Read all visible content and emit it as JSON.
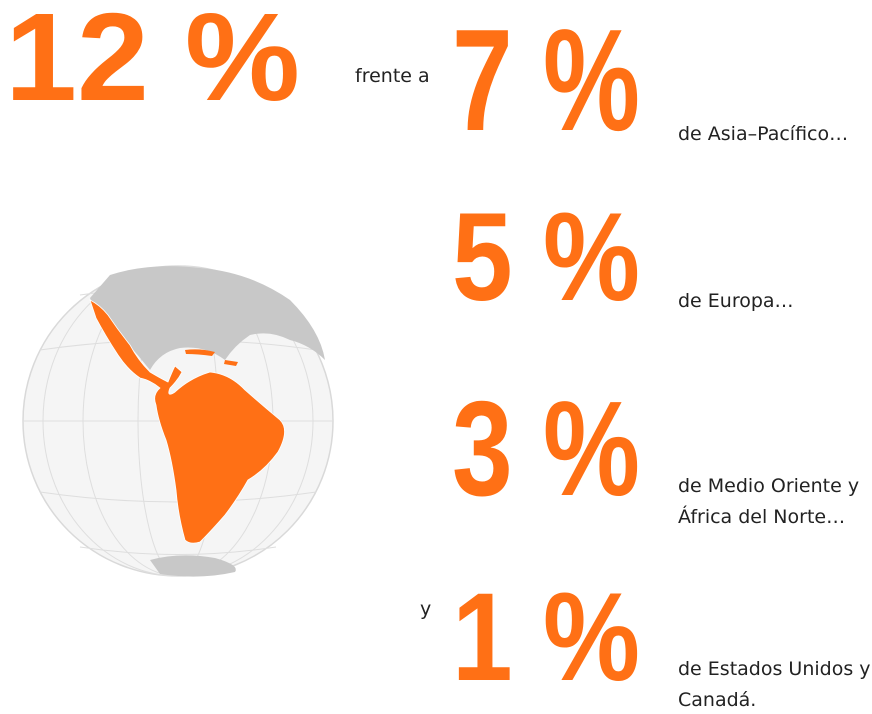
{
  "headline": {
    "value": "12 %",
    "connector": "frente a"
  },
  "stats": [
    {
      "prefix": null,
      "value": "7 %",
      "label": [
        "de Asia–Pacífico…"
      ]
    },
    {
      "prefix": null,
      "value": "5 %",
      "label": [
        "de Europa…"
      ]
    },
    {
      "prefix": null,
      "value": "3 %",
      "label": [
        "de Medio Oriente y",
        "África del Norte…"
      ]
    },
    {
      "prefix": "y",
      "value": "1 %",
      "label": [
        "de Estados Unidos y",
        "Canadá."
      ]
    }
  ]
}
